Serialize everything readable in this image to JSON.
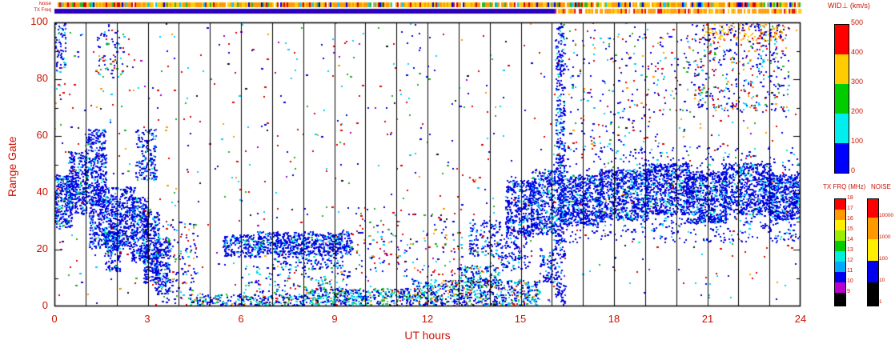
{
  "colors": {
    "text": "#cc1100",
    "grid": "#000000",
    "background": "#ffffff"
  },
  "strips": {
    "noise": {
      "label": "Noise",
      "palette": [
        [
          "#ff9900",
          0.4
        ],
        [
          "#ffcc00",
          0.22
        ],
        [
          "#ffffff",
          0.06
        ],
        [
          "#22bb22",
          0.1
        ],
        [
          "#00ccff",
          0.06
        ],
        [
          "#0000dd",
          0.07
        ],
        [
          "#dd0000",
          0.09
        ]
      ]
    },
    "tx_freq": {
      "label": "TX Freq",
      "solid_until": 16.1,
      "solid_color": "#2a00bb",
      "palette": [
        [
          "#ff9900",
          0.5
        ],
        [
          "#ffcc00",
          0.2
        ],
        [
          "#ffffff",
          0.18
        ],
        [
          "#dd0000",
          0.12
        ]
      ]
    }
  },
  "chart_data": {
    "type": "scatter",
    "description": "SuperDARN-style range-time plot of perpendicular spectral width vs UT time and range gate",
    "title": "WID⊥ (km/s)",
    "xlabel": "UT hours",
    "ylabel": "Range Gate",
    "xlim": [
      0,
      24
    ],
    "ylim": [
      0,
      100
    ],
    "x_tick_labels": [
      "0",
      "3",
      "6",
      "9",
      "12",
      "15",
      "18",
      "21",
      "24"
    ],
    "y_tick_labels": [
      "0",
      "20",
      "40",
      "60",
      "80",
      "100"
    ],
    "grid": "vertical black line every 1 hour, full plot height",
    "colorbars": [
      {
        "title": "WID⊥ (km/s)",
        "colors": [
          "#ff0000",
          "#ffcc00",
          "#00cc00",
          "#00eeee",
          "#0000ff"
        ],
        "labels": [
          "500",
          "400",
          "300",
          "200",
          "100",
          "0"
        ]
      },
      {
        "title": "TX FRQ (MHz)",
        "colors": [
          "#ff0000",
          "#ff9900",
          "#ffee00",
          "#99ee00",
          "#00cc00",
          "#00eedd",
          "#00aaff",
          "#0000ee",
          "#bb00cc",
          "#000000"
        ],
        "labels": [
          "18",
          "17",
          "16",
          "15",
          "14",
          "13",
          "12",
          "11",
          "10",
          "9"
        ]
      },
      {
        "title": "NOISE",
        "colors": [
          "#ff0000",
          "#ff9900",
          "#ffee00",
          "#0000ee",
          "#000000"
        ],
        "labels": [
          "10000",
          "1000",
          "100",
          "10",
          "1"
        ]
      }
    ],
    "palettes": {
      "B": [
        [
          "#0000dd",
          0.72
        ],
        [
          "#2233ff",
          0.1
        ],
        [
          "#00ccff",
          0.12
        ],
        [
          "#00eebb",
          0.04
        ],
        [
          "#22aa22",
          0.02
        ]
      ],
      "Bc": [
        [
          "#0000dd",
          0.45
        ],
        [
          "#00ccff",
          0.22
        ],
        [
          "#00eebb",
          0.1
        ],
        [
          "#22bb22",
          0.1
        ],
        [
          "#dd0000",
          0.05
        ],
        [
          "#ff9900",
          0.04
        ],
        [
          "#111111",
          0.04
        ]
      ],
      "N": [
        [
          "#dd0000",
          0.3
        ],
        [
          "#0000dd",
          0.28
        ],
        [
          "#00ccff",
          0.13
        ],
        [
          "#22aa22",
          0.12
        ],
        [
          "#ff9900",
          0.07
        ],
        [
          "#111111",
          0.05
        ],
        [
          "#9900cc",
          0.05
        ]
      ],
      "S": [
        [
          "#0000dd",
          0.52
        ],
        [
          "#00ccff",
          0.16
        ],
        [
          "#dd0000",
          0.16
        ],
        [
          "#22aa22",
          0.08
        ],
        [
          "#ff9900",
          0.08
        ]
      ],
      "Y": [
        [
          "#ffcc00",
          0.38
        ],
        [
          "#ff9900",
          0.3
        ],
        [
          "#0000dd",
          0.2
        ],
        [
          "#dd0000",
          0.12
        ]
      ]
    },
    "regions": [
      {
        "t": [
          0,
          0.55
        ],
        "g": [
          27,
          46
        ],
        "n": 260,
        "p": "B"
      },
      {
        "t": [
          0.45,
          1.05
        ],
        "g": [
          32,
          54
        ],
        "n": 300,
        "p": "B"
      },
      {
        "t": [
          0.95,
          1.65
        ],
        "g": [
          38,
          62
        ],
        "n": 320,
        "p": "B"
      },
      {
        "t": [
          0,
          0.35
        ],
        "g": [
          82,
          100
        ],
        "n": 60,
        "p": "B"
      },
      {
        "t": [
          1.1,
          2.55
        ],
        "g": [
          20,
          42
        ],
        "n": 700,
        "p": "B"
      },
      {
        "t": [
          1.6,
          2.1
        ],
        "g": [
          12,
          26
        ],
        "n": 150,
        "p": "B"
      },
      {
        "t": [
          1.3,
          2.2
        ],
        "g": [
          80,
          97
        ],
        "n": 70,
        "p": "S"
      },
      {
        "t": [
          2.45,
          3.0
        ],
        "g": [
          15,
          38
        ],
        "n": 300,
        "p": "B"
      },
      {
        "t": [
          2.85,
          3.35
        ],
        "g": [
          8,
          33
        ],
        "n": 280,
        "p": "B"
      },
      {
        "t": [
          3.2,
          3.7
        ],
        "g": [
          4,
          24
        ],
        "n": 200,
        "p": "B"
      },
      {
        "t": [
          2.6,
          3.25
        ],
        "g": [
          44,
          62
        ],
        "n": 160,
        "p": "B"
      },
      {
        "t": [
          3.2,
          4.6
        ],
        "g": [
          0,
          30
        ],
        "n": 120,
        "p": "S"
      },
      {
        "t": [
          4.3,
          8.0
        ],
        "g": [
          0,
          4
        ],
        "n": 260,
        "p": "Bc"
      },
      {
        "t": [
          5.4,
          6.6
        ],
        "g": [
          17,
          25
        ],
        "n": 200,
        "p": "B"
      },
      {
        "t": [
          6.5,
          9.55
        ],
        "g": [
          18,
          26
        ],
        "n": 650,
        "p": "B"
      },
      {
        "t": [
          7.0,
          9.3
        ],
        "g": [
          13,
          19
        ],
        "n": 130,
        "p": "B"
      },
      {
        "t": [
          6.0,
          9.5
        ],
        "g": [
          4,
          14
        ],
        "n": 140,
        "p": "Bc"
      },
      {
        "t": [
          8.0,
          11.5
        ],
        "g": [
          0,
          6
        ],
        "n": 420,
        "p": "Bc"
      },
      {
        "t": [
          11.5,
          15.6
        ],
        "g": [
          0,
          9
        ],
        "n": 700,
        "p": "Bc"
      },
      {
        "t": [
          13.0,
          14.3
        ],
        "g": [
          8,
          14
        ],
        "n": 120,
        "p": "Bc"
      },
      {
        "t": [
          9.6,
          13.2
        ],
        "g": [
          10,
          35
        ],
        "n": 150,
        "p": "N"
      },
      {
        "t": [
          13.3,
          14.3
        ],
        "g": [
          17,
          30
        ],
        "n": 130,
        "p": "B"
      },
      {
        "t": [
          14.3,
          15.2
        ],
        "g": [
          12,
          24
        ],
        "n": 100,
        "p": "B"
      },
      {
        "t": [
          14.5,
          15.4
        ],
        "g": [
          24,
          44
        ],
        "n": 380,
        "p": "B"
      },
      {
        "t": [
          15.3,
          16.1
        ],
        "g": [
          25,
          48
        ],
        "n": 380,
        "p": "B"
      },
      {
        "t": [
          15.6,
          16.1
        ],
        "g": [
          8,
          20
        ],
        "n": 80,
        "p": "B"
      },
      {
        "t": [
          16.1,
          16.4
        ],
        "g": [
          0,
          100
        ],
        "n": 420,
        "p": "B"
      },
      {
        "t": [
          16.15,
          17.6
        ],
        "g": [
          28,
          46
        ],
        "n": 650,
        "p": "B"
      },
      {
        "t": [
          17.5,
          19.1
        ],
        "g": [
          30,
          48
        ],
        "n": 700,
        "p": "B"
      },
      {
        "t": [
          19.0,
          20.4
        ],
        "g": [
          32,
          50
        ],
        "n": 650,
        "p": "B"
      },
      {
        "t": [
          20.3,
          21.6
        ],
        "g": [
          29,
          47
        ],
        "n": 650,
        "p": "B"
      },
      {
        "t": [
          21.5,
          23.1
        ],
        "g": [
          32,
          50
        ],
        "n": 700,
        "p": "B"
      },
      {
        "t": [
          23.0,
          24
        ],
        "g": [
          30,
          46
        ],
        "n": 480,
        "p": "B"
      },
      {
        "t": [
          16.3,
          24
        ],
        "g": [
          22,
          32
        ],
        "n": 250,
        "p": "B"
      },
      {
        "t": [
          16.0,
          24
        ],
        "g": [
          46,
          56
        ],
        "n": 180,
        "p": "B"
      },
      {
        "t": [
          16.5,
          20.5
        ],
        "g": [
          55,
          95
        ],
        "n": 220,
        "p": "S"
      },
      {
        "t": [
          20.5,
          23.6
        ],
        "g": [
          68,
          100
        ],
        "n": 380,
        "p": "S"
      },
      {
        "t": [
          20.8,
          23.4
        ],
        "g": [
          93,
          99
        ],
        "n": 140,
        "p": "Y"
      },
      {
        "t": [
          0,
          24
        ],
        "g": [
          0,
          100
        ],
        "n": 900,
        "p": "N"
      }
    ]
  }
}
